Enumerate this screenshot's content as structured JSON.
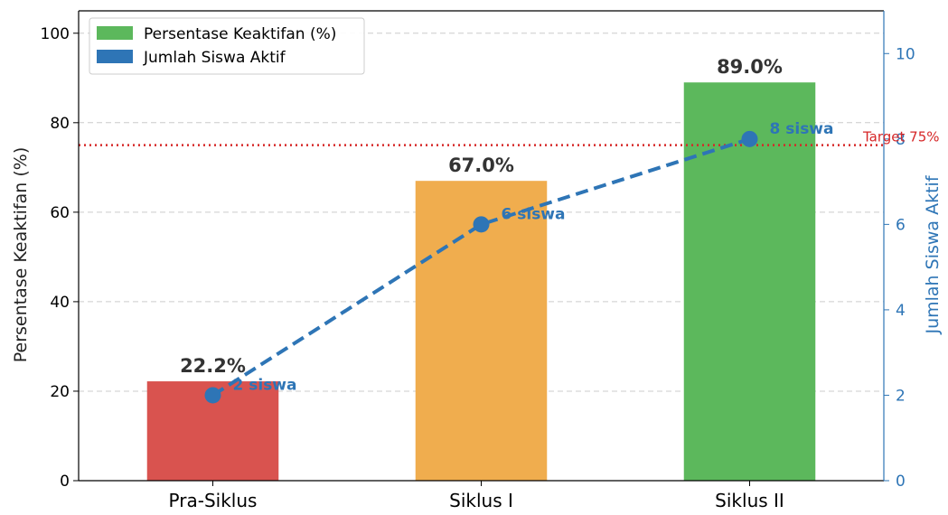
{
  "chart_data": {
    "type": "bar",
    "categories": [
      "Pra-Siklus",
      "Siklus I",
      "Siklus II"
    ],
    "series": [
      {
        "name": "Persentase Keaktifan (%)",
        "type": "bar",
        "axis": "left",
        "values": [
          22.2,
          67.0,
          89.0
        ],
        "value_labels": [
          "22.2%",
          "67.0%",
          "89.0%"
        ],
        "colors": [
          "#d9534f",
          "#f0ad4e",
          "#5cb85c"
        ]
      },
      {
        "name": "Jumlah Siswa Aktif",
        "type": "line",
        "axis": "right",
        "values": [
          2,
          6,
          8
        ],
        "value_labels": [
          "2 siswa",
          "6 siswa",
          "8 siswa"
        ],
        "color": "#2e75b6",
        "line_style": "dashed",
        "marker": "circle"
      }
    ],
    "target": {
      "value": 75,
      "label": "Target 75%",
      "color": "#d62728",
      "line_style": "dotted"
    },
    "ylabel": "Persentase Keaktifan (%)",
    "ylabel_right": "Jumlah Siswa Aktif",
    "ylim": [
      0,
      105
    ],
    "ylim_right": [
      0,
      11
    ],
    "yticks": [
      0,
      20,
      40,
      60,
      80,
      100
    ],
    "yticks_right": [
      0,
      2,
      4,
      6,
      8,
      10
    ],
    "grid": "horizontal dashed",
    "legend_placement": "top-left",
    "legend": [
      {
        "label": "Persentase Keaktifan (%)",
        "color": "#5cb85c"
      },
      {
        "label": "Jumlah Siswa Aktif",
        "color": "#2e75b6"
      }
    ]
  }
}
